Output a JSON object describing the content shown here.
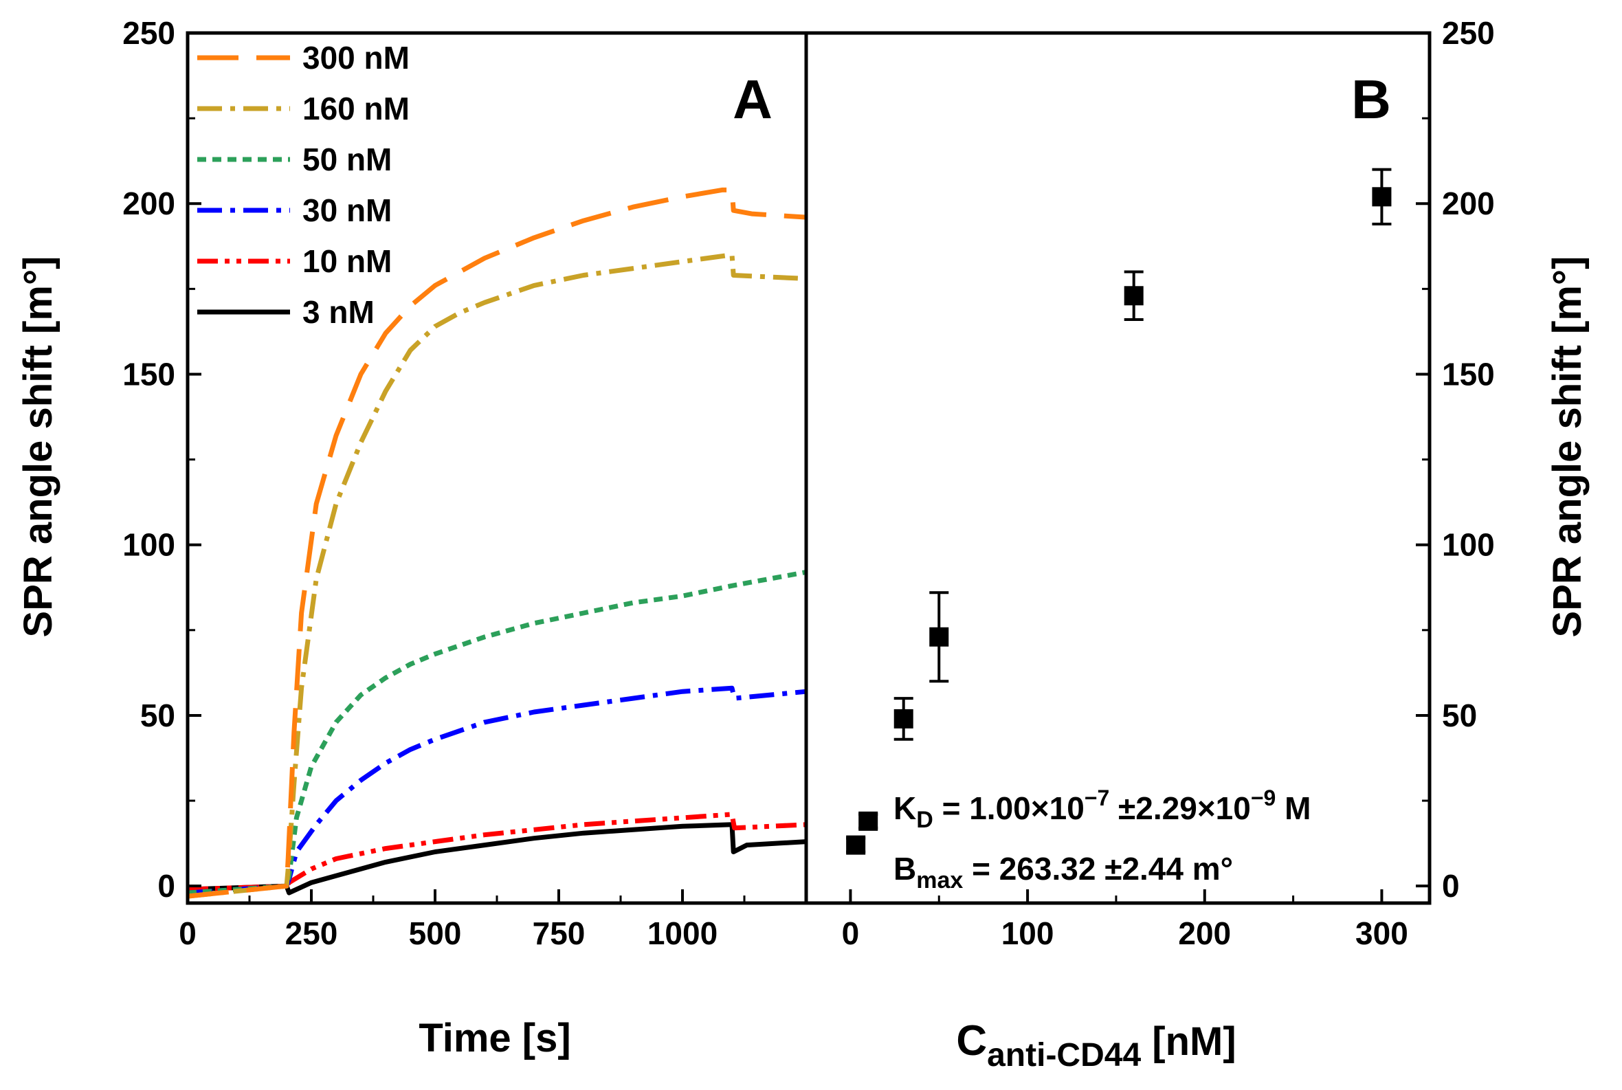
{
  "chart_data": [
    {
      "panel": "A",
      "type": "line",
      "panel_label": "A",
      "xlabel": "Time [s]",
      "ylabel": "SPR angle shift [m°]",
      "xlim": [
        0,
        1250
      ],
      "ylim": [
        -5,
        250
      ],
      "x_ticks": [
        0,
        250,
        500,
        750,
        1000
      ],
      "y_ticks": [
        0,
        50,
        100,
        150,
        200,
        250
      ],
      "legend_position": "top-left",
      "series": [
        {
          "name": "300 nM",
          "color": "#FF7F0E",
          "style": "longdash",
          "x": [
            0,
            200,
            203,
            215,
            230,
            260,
            300,
            350,
            400,
            450,
            500,
            600,
            700,
            800,
            900,
            1000,
            1080,
            1100,
            1103,
            1140,
            1250
          ],
          "y": [
            -3,
            0,
            8,
            45,
            80,
            112,
            132,
            150,
            162,
            170,
            176,
            184,
            190,
            195,
            199,
            202,
            204,
            204,
            198,
            197,
            196
          ]
        },
        {
          "name": "160 nM",
          "color": "#C9A227",
          "style": "dashdot",
          "x": [
            0,
            200,
            203,
            215,
            230,
            260,
            300,
            350,
            400,
            450,
            500,
            550,
            600,
            700,
            800,
            900,
            1000,
            1100,
            1103,
            1250
          ],
          "y": [
            -3,
            0,
            5,
            30,
            58,
            90,
            112,
            130,
            145,
            157,
            164,
            168,
            171,
            176,
            179,
            181,
            183,
            185,
            179,
            178
          ]
        },
        {
          "name": "50 nM",
          "color": "#2CA05A",
          "style": "dotted",
          "x": [
            0,
            200,
            205,
            220,
            250,
            300,
            350,
            400,
            450,
            500,
            600,
            700,
            800,
            900,
            1000,
            1100,
            1250
          ],
          "y": [
            -2,
            0,
            3,
            20,
            35,
            48,
            56,
            61,
            65,
            68,
            73,
            77,
            80,
            83,
            85,
            88,
            92
          ]
        },
        {
          "name": "30 nM",
          "color": "#0000FF",
          "style": "dashdot",
          "x": [
            0,
            200,
            205,
            220,
            260,
            300,
            350,
            400,
            450,
            500,
            600,
            700,
            800,
            900,
            1000,
            1100,
            1105,
            1250
          ],
          "y": [
            -2,
            0,
            2,
            10,
            18,
            25,
            31,
            36,
            40,
            43,
            48,
            51,
            53,
            55,
            57,
            58,
            55,
            57
          ]
        },
        {
          "name": "10 nM",
          "color": "#FF0000",
          "style": "dashdotdot",
          "x": [
            0,
            200,
            205,
            250,
            300,
            400,
            500,
            600,
            700,
            800,
            900,
            1000,
            1100,
            1105,
            1250
          ],
          "y": [
            -1,
            0,
            1,
            5,
            8,
            11,
            13,
            15,
            16.5,
            18,
            19,
            20,
            21,
            17,
            18
          ]
        },
        {
          "name": "3 nM",
          "color": "#000000",
          "style": "solid",
          "x": [
            0,
            200,
            205,
            250,
            300,
            400,
            500,
            600,
            700,
            800,
            900,
            1000,
            1100,
            1103,
            1130,
            1250
          ],
          "y": [
            -1,
            0,
            -2,
            1,
            3,
            7,
            10,
            12,
            14,
            15.5,
            16.5,
            17.5,
            18,
            10,
            12,
            13
          ]
        }
      ]
    },
    {
      "panel": "B",
      "type": "scatter",
      "panel_label": "B",
      "xlabel_main": "C",
      "xlabel_sub": "anti-CD44",
      "xlabel_unit": " [nM]",
      "ylabel": "SPR angle shift [m°]",
      "xlim": [
        -25,
        327
      ],
      "ylim": [
        -5,
        250
      ],
      "x_ticks": [
        0,
        100,
        200,
        300
      ],
      "y_ticks": [
        0,
        50,
        100,
        150,
        200,
        250
      ],
      "points": [
        {
          "x": 3,
          "y": 12,
          "err": 2
        },
        {
          "x": 10,
          "y": 19,
          "err": 2
        },
        {
          "x": 30,
          "y": 49,
          "err": 6
        },
        {
          "x": 50,
          "y": 73,
          "err": 13
        },
        {
          "x": 160,
          "y": 173,
          "err": 7
        },
        {
          "x": 300,
          "y": 202,
          "err": 8
        }
      ],
      "annotation": {
        "kd_main": "K",
        "kd_sub": "D",
        "kd_eq": " = 1.00×10",
        "kd_exp1": "−7",
        "kd_pm": " ±2.29×10",
        "kd_exp2": "−9",
        "kd_unit": " M",
        "bmax_main": "B",
        "bmax_sub": "max",
        "bmax_val": " = 263.32 ±2.44 m°"
      }
    }
  ]
}
